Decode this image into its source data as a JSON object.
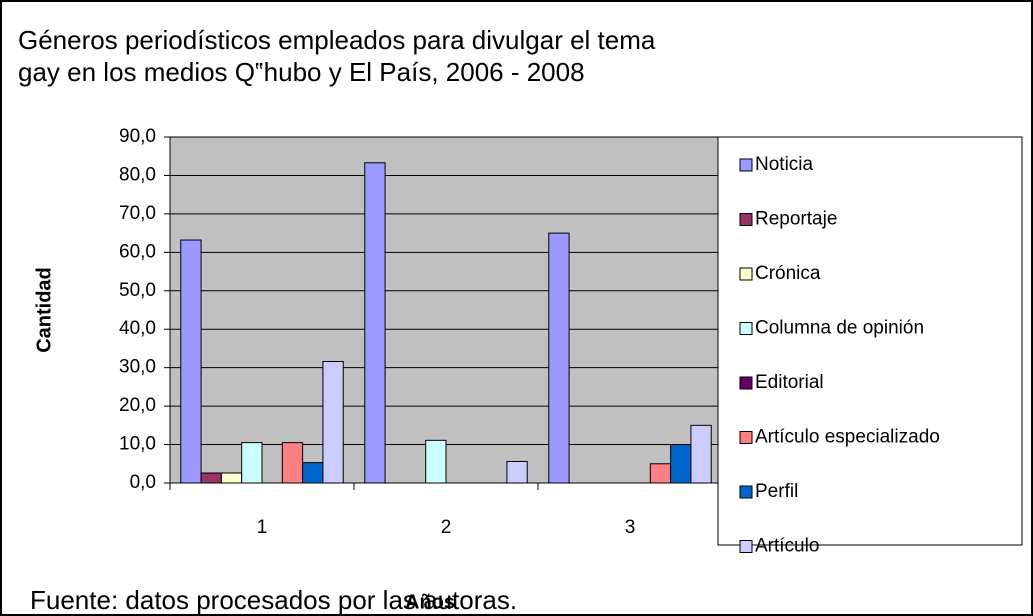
{
  "chart_data": {
    "type": "bar",
    "title": [
      "Géneros periodísticos empleados para divulgar el tema",
      "gay en los medios Q‟hubo y El País, 2006 - 2008"
    ],
    "x_label": "Años",
    "y_label": "Cantidad",
    "note": "Fuente: datos procesados por las autoras.",
    "categories": [
      "1",
      "2",
      "3"
    ],
    "series": [
      {
        "name": "Noticia",
        "color": "#9999ff",
        "values": [
          63.2,
          83.3,
          65.0
        ]
      },
      {
        "name": "Reportaje",
        "color": "#993366",
        "values": [
          2.6,
          0,
          0
        ]
      },
      {
        "name": "Crónica",
        "color": "#ffffcc",
        "values": [
          2.6,
          0,
          0
        ]
      },
      {
        "name": "Columna de opinión",
        "color": "#ccffff",
        "values": [
          10.5,
          11.1,
          0
        ]
      },
      {
        "name": "Editorial",
        "color": "#660066",
        "values": [
          0,
          0,
          0
        ]
      },
      {
        "name": "Artículo especializado",
        "color": "#ff8080",
        "values": [
          10.5,
          0,
          5.0
        ]
      },
      {
        "name": "Perfil",
        "color": "#0066cc",
        "values": [
          5.3,
          0,
          10.0
        ]
      },
      {
        "name": "Artículo",
        "color": "#ccccff",
        "values": [
          31.6,
          5.6,
          15.0
        ]
      }
    ],
    "ylim": [
      0,
      90
    ],
    "yticks": [
      {
        "value": 0,
        "label": "0,0"
      },
      {
        "value": 10,
        "label": "10,0"
      },
      {
        "value": 20,
        "label": "20,0"
      },
      {
        "value": 30,
        "label": "30,0"
      },
      {
        "value": 40,
        "label": "40,0"
      },
      {
        "value": 50,
        "label": "50,0"
      },
      {
        "value": 60,
        "label": "60,0"
      },
      {
        "value": 70,
        "label": "70,0"
      },
      {
        "value": 80,
        "label": "80,0"
      },
      {
        "value": 90,
        "label": "90,0"
      }
    ],
    "grid": true,
    "plot_background": "#c0c0c0",
    "legend": "right"
  }
}
